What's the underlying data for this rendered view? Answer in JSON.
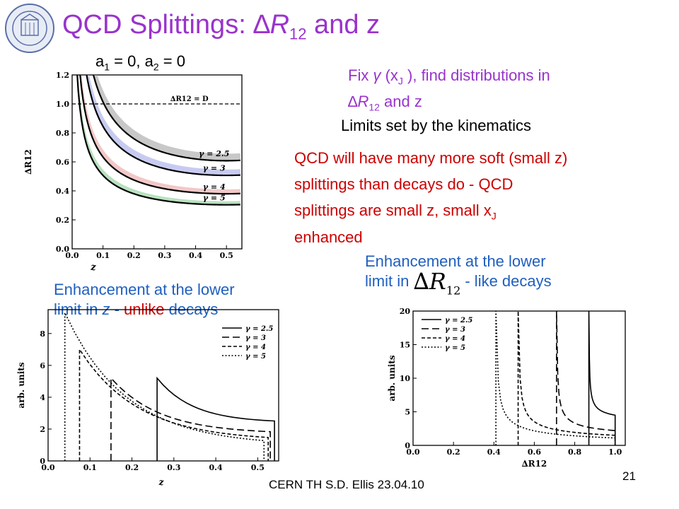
{
  "slide": {
    "title_prefix": "QCD Splittings: ",
    "title_delta": "∆",
    "title_r": "R",
    "title_sub": "12",
    "title_suffix": " and z",
    "params": {
      "a1": "a",
      "a1_sub": "1",
      "a1_val": " = 0, a",
      "a2_sub": "2",
      "a2_val": " = 0"
    },
    "fix_text": {
      "p1": "Fix ",
      "gamma": "γ",
      "p2": " (x",
      "p2_sub": "J",
      "p3": " ), find distributions in",
      "line2_delta": "∆",
      "line2_r": "R",
      "line2_sub": "12",
      "line2_rest": " and z"
    },
    "limits": "Limits set by the kinematics",
    "qcd_lines": {
      "l1": "QCD will have many more soft (small z)",
      "l2": "splittings than decays do - QCD",
      "l3": "splittings are small z, small x",
      "l3_sub": "J",
      "l4": "enhanced"
    },
    "enh_r": {
      "line1": "Enhancement at the lower",
      "line2a": "limit in ",
      "line2b": " - like decays",
      "formula_delta": "∆",
      "formula_r": "R",
      "formula_sub": "12"
    },
    "enh_z": {
      "line1": "Enhancement at the lower",
      "line2a": "limit in ",
      "line2z": "z",
      "line2b": " - ",
      "unlike": "unlike",
      "line2c": " decays"
    },
    "footer": "CERN TH    S.D. Ellis    23.04.10",
    "page_number": "21"
  },
  "chart_data": [
    {
      "type": "line",
      "xlabel": "z",
      "ylabel": "∆R12",
      "xlim": [
        0.0,
        0.55
      ],
      "ylim": [
        0.0,
        1.2
      ],
      "xticks": [
        "0.0",
        "0.1",
        "0.2",
        "0.3",
        "0.4",
        "0.5"
      ],
      "yticks": [
        "0.0",
        "0.2",
        "0.4",
        "0.6",
        "0.8",
        "1.0",
        "1.2"
      ],
      "reference_line": {
        "label": "∆R12 = D",
        "y": 1.0
      },
      "series": [
        {
          "name": "γ = 2.5",
          "k": 0.8
        },
        {
          "name": "γ = 3",
          "k": 0.667
        },
        {
          "name": "γ = 4",
          "k": 0.5
        },
        {
          "name": "γ = 5",
          "k": 0.4
        }
      ]
    },
    {
      "type": "line",
      "ylabel": "arb. units",
      "xlabel": "z",
      "xlim": [
        0.0,
        0.55
      ],
      "ylim": [
        0,
        9.5
      ],
      "xticks": [
        "0.0",
        "0.1",
        "0.2",
        "0.3",
        "0.4",
        "0.5"
      ],
      "yticks": [
        "0",
        "2",
        "4",
        "6",
        "8"
      ],
      "series": [
        {
          "name": "γ = 2.5",
          "zmin": 0.26,
          "zmax": 0.54,
          "peak": 5.2,
          "end": 2.4
        },
        {
          "name": "γ = 3",
          "zmin": 0.15,
          "zmax": 0.53,
          "peak": 5.2,
          "end": 1.7
        },
        {
          "name": "γ = 4",
          "zmin": 0.075,
          "zmax": 0.525,
          "peak": 7.0,
          "end": 1.25
        },
        {
          "name": "γ = 5",
          "zmin": 0.04,
          "zmax": 0.515,
          "peak": 9.3,
          "end": 0.95
        }
      ]
    },
    {
      "type": "line",
      "ylabel": "arb. units",
      "xlabel": "∆R12",
      "xlim": [
        0.0,
        1.05
      ],
      "ylim": [
        0,
        20
      ],
      "xticks": [
        "0.0",
        "0.2",
        "0.4",
        "0.6",
        "0.8",
        "1.0"
      ],
      "yticks": [
        "0",
        "5",
        "10",
        "15",
        "20"
      ],
      "series": [
        {
          "name": "γ = 2.5",
          "rmin": 0.87,
          "rmax": 1.0,
          "end": 4.5
        },
        {
          "name": "γ = 3",
          "rmin": 0.71,
          "rmax": 1.0,
          "end": 2.2
        },
        {
          "name": "γ = 4",
          "rmin": 0.52,
          "rmax": 1.0,
          "end": 1.5
        },
        {
          "name": "γ = 5",
          "rmin": 0.41,
          "rmax": 1.0,
          "end": 1.1
        }
      ]
    }
  ]
}
